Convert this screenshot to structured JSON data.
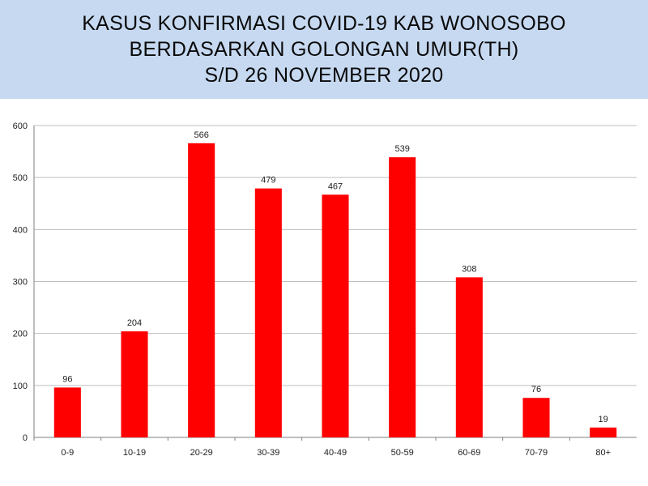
{
  "header": {
    "title_lines": [
      "KASUS KONFIRMASI COVID-19  KAB WONOSOBO",
      "BERDASARKAN GOLONGAN UMUR(TH)",
      "S/D 26 NOVEMBER 2020"
    ]
  },
  "colors": {
    "bar": "#ff0000",
    "title_background": "#c6d9f1",
    "gridline": "#bfbfbf"
  },
  "chart_data": {
    "type": "bar",
    "title": "KASUS KONFIRMASI COVID-19  KAB WONOSOBO BERDASARKAN GOLONGAN UMUR(TH) S/D 26 NOVEMBER 2020",
    "categories": [
      "0-9",
      "10-19",
      "20-29",
      "30-39",
      "40-49",
      "50-59",
      "60-69",
      "70-79",
      "80+"
    ],
    "values": [
      96,
      204,
      566,
      479,
      467,
      539,
      308,
      76,
      19
    ],
    "ylim": [
      0,
      600
    ],
    "yticks": [
      0,
      100,
      200,
      300,
      400,
      500,
      600
    ],
    "grid": true,
    "legend": "none",
    "data_labels": true
  }
}
